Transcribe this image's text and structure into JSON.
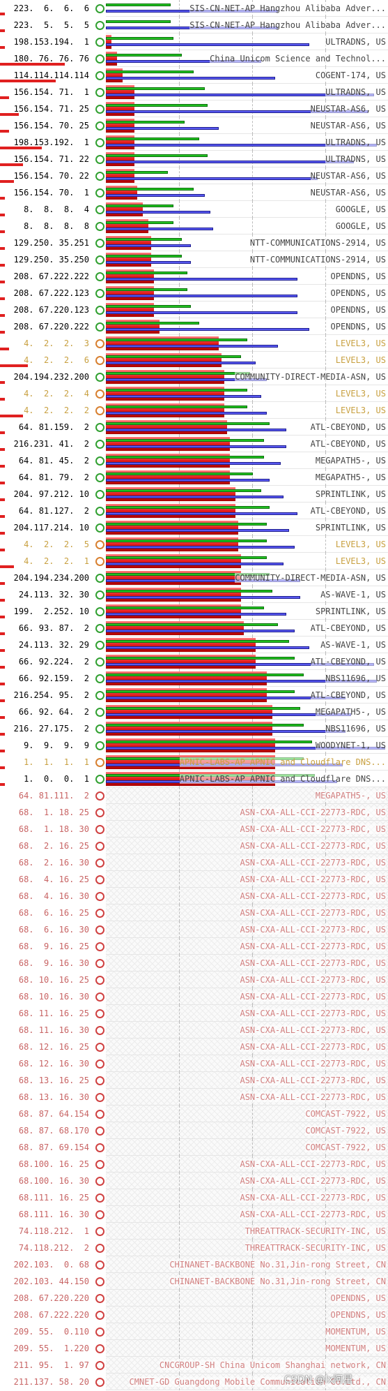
{
  "colors": {
    "ok": "#30a030",
    "warn": "#d88030",
    "dead": "#d04040",
    "cached": "#20c020",
    "uncached": "#5858f0",
    "dotcom": "#e21c1c"
  },
  "icons": {
    "ok": "green-ring-icon",
    "warn": "orange-ring-icon",
    "dead": "red-ring-icon"
  },
  "servers": [
    {
      "ip": "223.  6.  6.  6",
      "owner": "SIS-CN-NET-AP Hangzhou Alibaba Adver...",
      "status": "ok",
      "dotcom": 0.0,
      "cached": 0.23,
      "uncached": 0.61,
      "ipbar": 0.05
    },
    {
      "ip": "223.  5.  5.  5",
      "owner": "SIS-CN-NET-AP Hangzhou Alibaba Adver...",
      "status": "ok",
      "dotcom": 0.0,
      "cached": 0.23,
      "uncached": 0.61,
      "ipbar": 0.05
    },
    {
      "ip": "198.153.194.  1",
      "owner": "ULTRADNS, US",
      "status": "ok",
      "dotcom": 0.02,
      "cached": 0.24,
      "uncached": 0.72,
      "ipbar": 0.05
    },
    {
      "ip": "180. 76. 76. 76",
      "owner": "China Unicom Science and Technol...",
      "status": "ok",
      "dotcom": 0.04,
      "cached": 0.27,
      "uncached": 0.55,
      "ipbar": 0.7
    },
    {
      "ip": "114.114.114.114",
      "owner": "COGENT-174, US",
      "status": "ok",
      "dotcom": 0.06,
      "cached": 0.31,
      "uncached": 0.6,
      "ipbar": 0.6
    },
    {
      "ip": "156.154. 71.  1",
      "owner": "ULTRADNS, US",
      "status": "ok",
      "dotcom": 0.1,
      "cached": 0.35,
      "uncached": 0.95,
      "ipbar": 0.1
    },
    {
      "ip": "156.154. 71. 25",
      "owner": "NEUSTAR-AS6, US",
      "status": "ok",
      "dotcom": 0.1,
      "cached": 0.36,
      "uncached": 0.93,
      "ipbar": 0.2
    },
    {
      "ip": "156.154. 70. 25",
      "owner": "NEUSTAR-AS6, US",
      "status": "ok",
      "dotcom": 0.1,
      "cached": 0.28,
      "uncached": 0.4,
      "ipbar": 0.1
    },
    {
      "ip": "198.153.192.  1",
      "owner": "ULTRADNS, US",
      "status": "ok",
      "dotcom": 0.1,
      "cached": 0.33,
      "uncached": 0.96,
      "ipbar": 0.45
    },
    {
      "ip": "156.154. 71. 22",
      "owner": "ULTRADNS, US",
      "status": "ok",
      "dotcom": 0.1,
      "cached": 0.36,
      "uncached": 0.88,
      "ipbar": 0.25
    },
    {
      "ip": "156.154. 70. 22",
      "owner": "NEUSTAR-AS6, US",
      "status": "ok",
      "dotcom": 0.1,
      "cached": 0.22,
      "uncached": 0.75,
      "ipbar": 0.15
    },
    {
      "ip": "156.154. 70.  1",
      "owner": "NEUSTAR-AS6, US",
      "status": "ok",
      "dotcom": 0.11,
      "cached": 0.31,
      "uncached": 0.35,
      "ipbar": 0.05
    },
    {
      "ip": "  8.  8.  8.  4",
      "owner": "GOOGLE, US",
      "status": "ok",
      "dotcom": 0.13,
      "cached": 0.24,
      "uncached": 0.37,
      "ipbar": 0.05
    },
    {
      "ip": "  8.  8.  8.  8",
      "owner": "GOOGLE, US",
      "status": "ok",
      "dotcom": 0.15,
      "cached": 0.24,
      "uncached": 0.38,
      "ipbar": 0.05
    },
    {
      "ip": "129.250. 35.251",
      "owner": "NTT-COMMUNICATIONS-2914, US",
      "status": "ok",
      "dotcom": 0.16,
      "cached": 0.27,
      "uncached": 0.3,
      "ipbar": 0.05
    },
    {
      "ip": "129.250. 35.250",
      "owner": "NTT-COMMUNICATIONS-2914, US",
      "status": "ok",
      "dotcom": 0.16,
      "cached": 0.27,
      "uncached": 0.3,
      "ipbar": 0.05
    },
    {
      "ip": "208. 67.222.222",
      "owner": "OPENDNS, US",
      "status": "ok",
      "dotcom": 0.17,
      "cached": 0.29,
      "uncached": 0.68,
      "ipbar": 0.05
    },
    {
      "ip": "208. 67.222.123",
      "owner": "OPENDNS, US",
      "status": "ok",
      "dotcom": 0.17,
      "cached": 0.29,
      "uncached": 0.68,
      "ipbar": 0.05
    },
    {
      "ip": "208. 67.220.123",
      "owner": "OPENDNS, US",
      "status": "ok",
      "dotcom": 0.17,
      "cached": 0.3,
      "uncached": 0.68,
      "ipbar": 0.05
    },
    {
      "ip": "208. 67.220.222",
      "owner": "OPENDNS, US",
      "status": "ok",
      "dotcom": 0.19,
      "cached": 0.33,
      "uncached": 0.72,
      "ipbar": 0.05
    },
    {
      "ip": "  4.  2.  2.  3",
      "owner": "LEVEL3, US",
      "status": "warn",
      "dotcom": 0.4,
      "cached": 0.5,
      "uncached": 0.61,
      "ipbar": 0.1
    },
    {
      "ip": "  4.  2.  2.  6",
      "owner": "LEVEL3, US",
      "status": "warn",
      "dotcom": 0.41,
      "cached": 0.48,
      "uncached": 0.53,
      "ipbar": 0.3
    },
    {
      "ip": "204.194.232.200",
      "owner": "COMMUNITY-DIRECT-MEDIA-ASN, US",
      "status": "ok",
      "dotcom": 0.42,
      "cached": 0.51,
      "uncached": 0.57,
      "ipbar": 0.05
    },
    {
      "ip": "  4.  2.  2.  4",
      "owner": "LEVEL3, US",
      "status": "warn",
      "dotcom": 0.42,
      "cached": 0.5,
      "uncached": 0.55,
      "ipbar": 0.05
    },
    {
      "ip": "  4.  2.  2.  2",
      "owner": "LEVEL3, US",
      "status": "warn",
      "dotcom": 0.42,
      "cached": 0.5,
      "uncached": 0.57,
      "ipbar": 0.25
    },
    {
      "ip": " 64. 81.159.  2",
      "owner": "ATL-CBEYOND, US",
      "status": "ok",
      "dotcom": 0.43,
      "cached": 0.58,
      "uncached": 0.64,
      "ipbar": 0.05
    },
    {
      "ip": "216.231. 41.  2",
      "owner": "ATL-CBEYOND, US",
      "status": "ok",
      "dotcom": 0.44,
      "cached": 0.56,
      "uncached": 0.64,
      "ipbar": 0.05
    },
    {
      "ip": " 64. 81. 45.  2",
      "owner": "MEGAPATH5-, US",
      "status": "ok",
      "dotcom": 0.44,
      "cached": 0.56,
      "uncached": 0.62,
      "ipbar": 0.05
    },
    {
      "ip": " 64. 81. 79.  2",
      "owner": "MEGAPATH5-, US",
      "status": "ok",
      "dotcom": 0.44,
      "cached": 0.52,
      "uncached": 0.58,
      "ipbar": 0.05
    },
    {
      "ip": "204. 97.212. 10",
      "owner": "SPRINTLINK, US",
      "status": "ok",
      "dotcom": 0.46,
      "cached": 0.55,
      "uncached": 0.63,
      "ipbar": 0.05
    },
    {
      "ip": " 64. 81.127.  2",
      "owner": "ATL-CBEYOND, US",
      "status": "ok",
      "dotcom": 0.46,
      "cached": 0.58,
      "uncached": 0.68,
      "ipbar": 0.05
    },
    {
      "ip": "204.117.214. 10",
      "owner": "SPRINTLINK, US",
      "status": "ok",
      "dotcom": 0.47,
      "cached": 0.57,
      "uncached": 0.65,
      "ipbar": 0.05
    },
    {
      "ip": "  4.  2.  2.  5",
      "owner": "LEVEL3, US",
      "status": "warn",
      "dotcom": 0.47,
      "cached": 0.57,
      "uncached": 0.67,
      "ipbar": 0.05
    },
    {
      "ip": "  4.  2.  2.  1",
      "owner": "LEVEL3, US",
      "status": "warn",
      "dotcom": 0.48,
      "cached": 0.57,
      "uncached": 0.63,
      "ipbar": 0.15
    },
    {
      "ip": "204.194.234.200",
      "owner": "COMMUNITY-DIRECT-MEDIA-ASN, US",
      "status": "ok",
      "dotcom": 0.48,
      "cached": 0.58,
      "uncached": 0.69,
      "ipbar": 0.05
    },
    {
      "ip": " 24.113. 32. 30",
      "owner": "AS-WAVE-1, US",
      "status": "ok",
      "dotcom": 0.48,
      "cached": 0.59,
      "uncached": 0.69,
      "ipbar": 0.05
    },
    {
      "ip": "199.  2.252. 10",
      "owner": "SPRINTLINK, US",
      "status": "ok",
      "dotcom": 0.48,
      "cached": 0.56,
      "uncached": 0.64,
      "ipbar": 0.05
    },
    {
      "ip": " 66. 93. 87.  2",
      "owner": "ATL-CBEYOND, US",
      "status": "ok",
      "dotcom": 0.49,
      "cached": 0.61,
      "uncached": 0.67,
      "ipbar": 0.05
    },
    {
      "ip": " 24.113. 32. 29",
      "owner": "AS-WAVE-1, US",
      "status": "ok",
      "dotcom": 0.53,
      "cached": 0.65,
      "uncached": 0.72,
      "ipbar": 0.05
    },
    {
      "ip": " 66. 92.224.  2",
      "owner": "ATL-CBEYOND, US",
      "status": "ok",
      "dotcom": 0.53,
      "cached": 0.67,
      "uncached": 0.95,
      "ipbar": 0.05
    },
    {
      "ip": " 66. 92.159.  2",
      "owner": "NBS11696, US",
      "status": "ok",
      "dotcom": 0.57,
      "cached": 0.7,
      "uncached": 0.96,
      "ipbar": 0.05
    },
    {
      "ip": "216.254. 95.  2",
      "owner": "ATL-CBEYOND, US",
      "status": "ok",
      "dotcom": 0.57,
      "cached": 0.67,
      "uncached": 0.85,
      "ipbar": 0.05
    },
    {
      "ip": " 66. 92. 64.  2",
      "owner": "MEGAPATH5-, US",
      "status": "ok",
      "dotcom": 0.59,
      "cached": 0.69,
      "uncached": 0.87,
      "ipbar": 0.05
    },
    {
      "ip": "216. 27.175.  2",
      "owner": "NBS11696, US",
      "status": "ok",
      "dotcom": 0.59,
      "cached": 0.7,
      "uncached": 0.85,
      "ipbar": 0.05
    },
    {
      "ip": "  9.  9.  9.  9",
      "owner": "WOODYNET-1, US",
      "status": "ok",
      "dotcom": 0.6,
      "cached": 0.73,
      "uncached": 0.99,
      "ipbar": 0.05
    },
    {
      "ip": "  1.  1.  1.  1",
      "owner": "APNIC-LABS-AP APNIC and Cloudflare DNS...",
      "status": "warn",
      "dotcom": 0.6,
      "cached": 0.7,
      "uncached": 0.84,
      "ipbar": 0.05
    },
    {
      "ip": "  1.  0.  0.  1",
      "owner": "APNIC-LABS-AP APNIC and Cloudflare DNS...",
      "status": "ok",
      "dotcom": 0.6,
      "cached": 0.74,
      "uncached": 0.82,
      "ipbar": 0.05
    },
    {
      "ip": " 64. 81.111.  2",
      "owner": "MEGAPATH5-, US",
      "status": "dead",
      "ipbar": 0
    },
    {
      "ip": " 68.  1. 18. 25",
      "owner": "ASN-CXA-ALL-CCI-22773-RDC, US",
      "status": "dead",
      "ipbar": 0
    },
    {
      "ip": " 68.  1. 18. 30",
      "owner": "ASN-CXA-ALL-CCI-22773-RDC, US",
      "status": "dead",
      "ipbar": 0
    },
    {
      "ip": " 68.  2. 16. 25",
      "owner": "ASN-CXA-ALL-CCI-22773-RDC, US",
      "status": "dead",
      "ipbar": 0
    },
    {
      "ip": " 68.  2. 16. 30",
      "owner": "ASN-CXA-ALL-CCI-22773-RDC, US",
      "status": "dead",
      "ipbar": 0
    },
    {
      "ip": " 68.  4. 16. 25",
      "owner": "ASN-CXA-ALL-CCI-22773-RDC, US",
      "status": "dead",
      "ipbar": 0
    },
    {
      "ip": " 68.  4. 16. 30",
      "owner": "ASN-CXA-ALL-CCI-22773-RDC, US",
      "status": "dead",
      "ipbar": 0
    },
    {
      "ip": " 68.  6. 16. 25",
      "owner": "ASN-CXA-ALL-CCI-22773-RDC, US",
      "status": "dead",
      "ipbar": 0
    },
    {
      "ip": " 68.  6. 16. 30",
      "owner": "ASN-CXA-ALL-CCI-22773-RDC, US",
      "status": "dead",
      "ipbar": 0
    },
    {
      "ip": " 68.  9. 16. 25",
      "owner": "ASN-CXA-ALL-CCI-22773-RDC, US",
      "status": "dead",
      "ipbar": 0
    },
    {
      "ip": " 68.  9. 16. 30",
      "owner": "ASN-CXA-ALL-CCI-22773-RDC, US",
      "status": "dead",
      "ipbar": 0
    },
    {
      "ip": " 68. 10. 16. 25",
      "owner": "ASN-CXA-ALL-CCI-22773-RDC, US",
      "status": "dead",
      "ipbar": 0
    },
    {
      "ip": " 68. 10. 16. 30",
      "owner": "ASN-CXA-ALL-CCI-22773-RDC, US",
      "status": "dead",
      "ipbar": 0
    },
    {
      "ip": " 68. 11. 16. 25",
      "owner": "ASN-CXA-ALL-CCI-22773-RDC, US",
      "status": "dead",
      "ipbar": 0
    },
    {
      "ip": " 68. 11. 16. 30",
      "owner": "ASN-CXA-ALL-CCI-22773-RDC, US",
      "status": "dead",
      "ipbar": 0
    },
    {
      "ip": " 68. 12. 16. 25",
      "owner": "ASN-CXA-ALL-CCI-22773-RDC, US",
      "status": "dead",
      "ipbar": 0
    },
    {
      "ip": " 68. 12. 16. 30",
      "owner": "ASN-CXA-ALL-CCI-22773-RDC, US",
      "status": "dead",
      "ipbar": 0
    },
    {
      "ip": " 68. 13. 16. 25",
      "owner": "ASN-CXA-ALL-CCI-22773-RDC, US",
      "status": "dead",
      "ipbar": 0
    },
    {
      "ip": " 68. 13. 16. 30",
      "owner": "ASN-CXA-ALL-CCI-22773-RDC, US",
      "status": "dead",
      "ipbar": 0
    },
    {
      "ip": " 68. 87. 64.154",
      "owner": "COMCAST-7922, US",
      "status": "dead",
      "ipbar": 0
    },
    {
      "ip": " 68. 87. 68.170",
      "owner": "COMCAST-7922, US",
      "status": "dead",
      "ipbar": 0
    },
    {
      "ip": " 68. 87. 69.154",
      "owner": "COMCAST-7922, US",
      "status": "dead",
      "ipbar": 0
    },
    {
      "ip": " 68.100. 16. 25",
      "owner": "ASN-CXA-ALL-CCI-22773-RDC, US",
      "status": "dead",
      "ipbar": 0
    },
    {
      "ip": " 68.100. 16. 30",
      "owner": "ASN-CXA-ALL-CCI-22773-RDC, US",
      "status": "dead",
      "ipbar": 0
    },
    {
      "ip": " 68.111. 16. 25",
      "owner": "ASN-CXA-ALL-CCI-22773-RDC, US",
      "status": "dead",
      "ipbar": 0
    },
    {
      "ip": " 68.111. 16. 30",
      "owner": "ASN-CXA-ALL-CCI-22773-RDC, US",
      "status": "dead",
      "ipbar": 0
    },
    {
      "ip": " 74.118.212.  1",
      "owner": "THREATTRACK-SECURITY-INC, US",
      "status": "dead",
      "ipbar": 0
    },
    {
      "ip": " 74.118.212.  2",
      "owner": "THREATTRACK-SECURITY-INC, US",
      "status": "dead",
      "ipbar": 0
    },
    {
      "ip": "202.103.  0. 68",
      "owner": "CHINANET-BACKBONE No.31,Jin-rong Street, CN",
      "status": "dead",
      "ipbar": 0
    },
    {
      "ip": "202.103. 44.150",
      "owner": "CHINANET-BACKBONE No.31,Jin-rong Street, CN",
      "status": "dead",
      "ipbar": 0
    },
    {
      "ip": "208. 67.220.220",
      "owner": "OPENDNS, US",
      "status": "dead",
      "ipbar": 0
    },
    {
      "ip": "208. 67.222.220",
      "owner": "OPENDNS, US",
      "status": "dead",
      "ipbar": 0
    },
    {
      "ip": "209. 55.  0.110",
      "owner": "MOMENTUM, US",
      "status": "dead",
      "ipbar": 0
    },
    {
      "ip": "209. 55.  1.220",
      "owner": "MOMENTUM, US",
      "status": "dead",
      "ipbar": 0
    },
    {
      "ip": "211. 95.  1. 97",
      "owner": "CNCGROUP-SH China Unicom Shanghai network, CN",
      "status": "dead",
      "ipbar": 0
    },
    {
      "ip": "211.137. 58. 20",
      "owner": "CMNET-GD Guangdong Mobile Communication Co.Ltd., CN",
      "status": "dead",
      "ipbar": 0
    }
  ],
  "watermark": "CSDN @lx阿星"
}
